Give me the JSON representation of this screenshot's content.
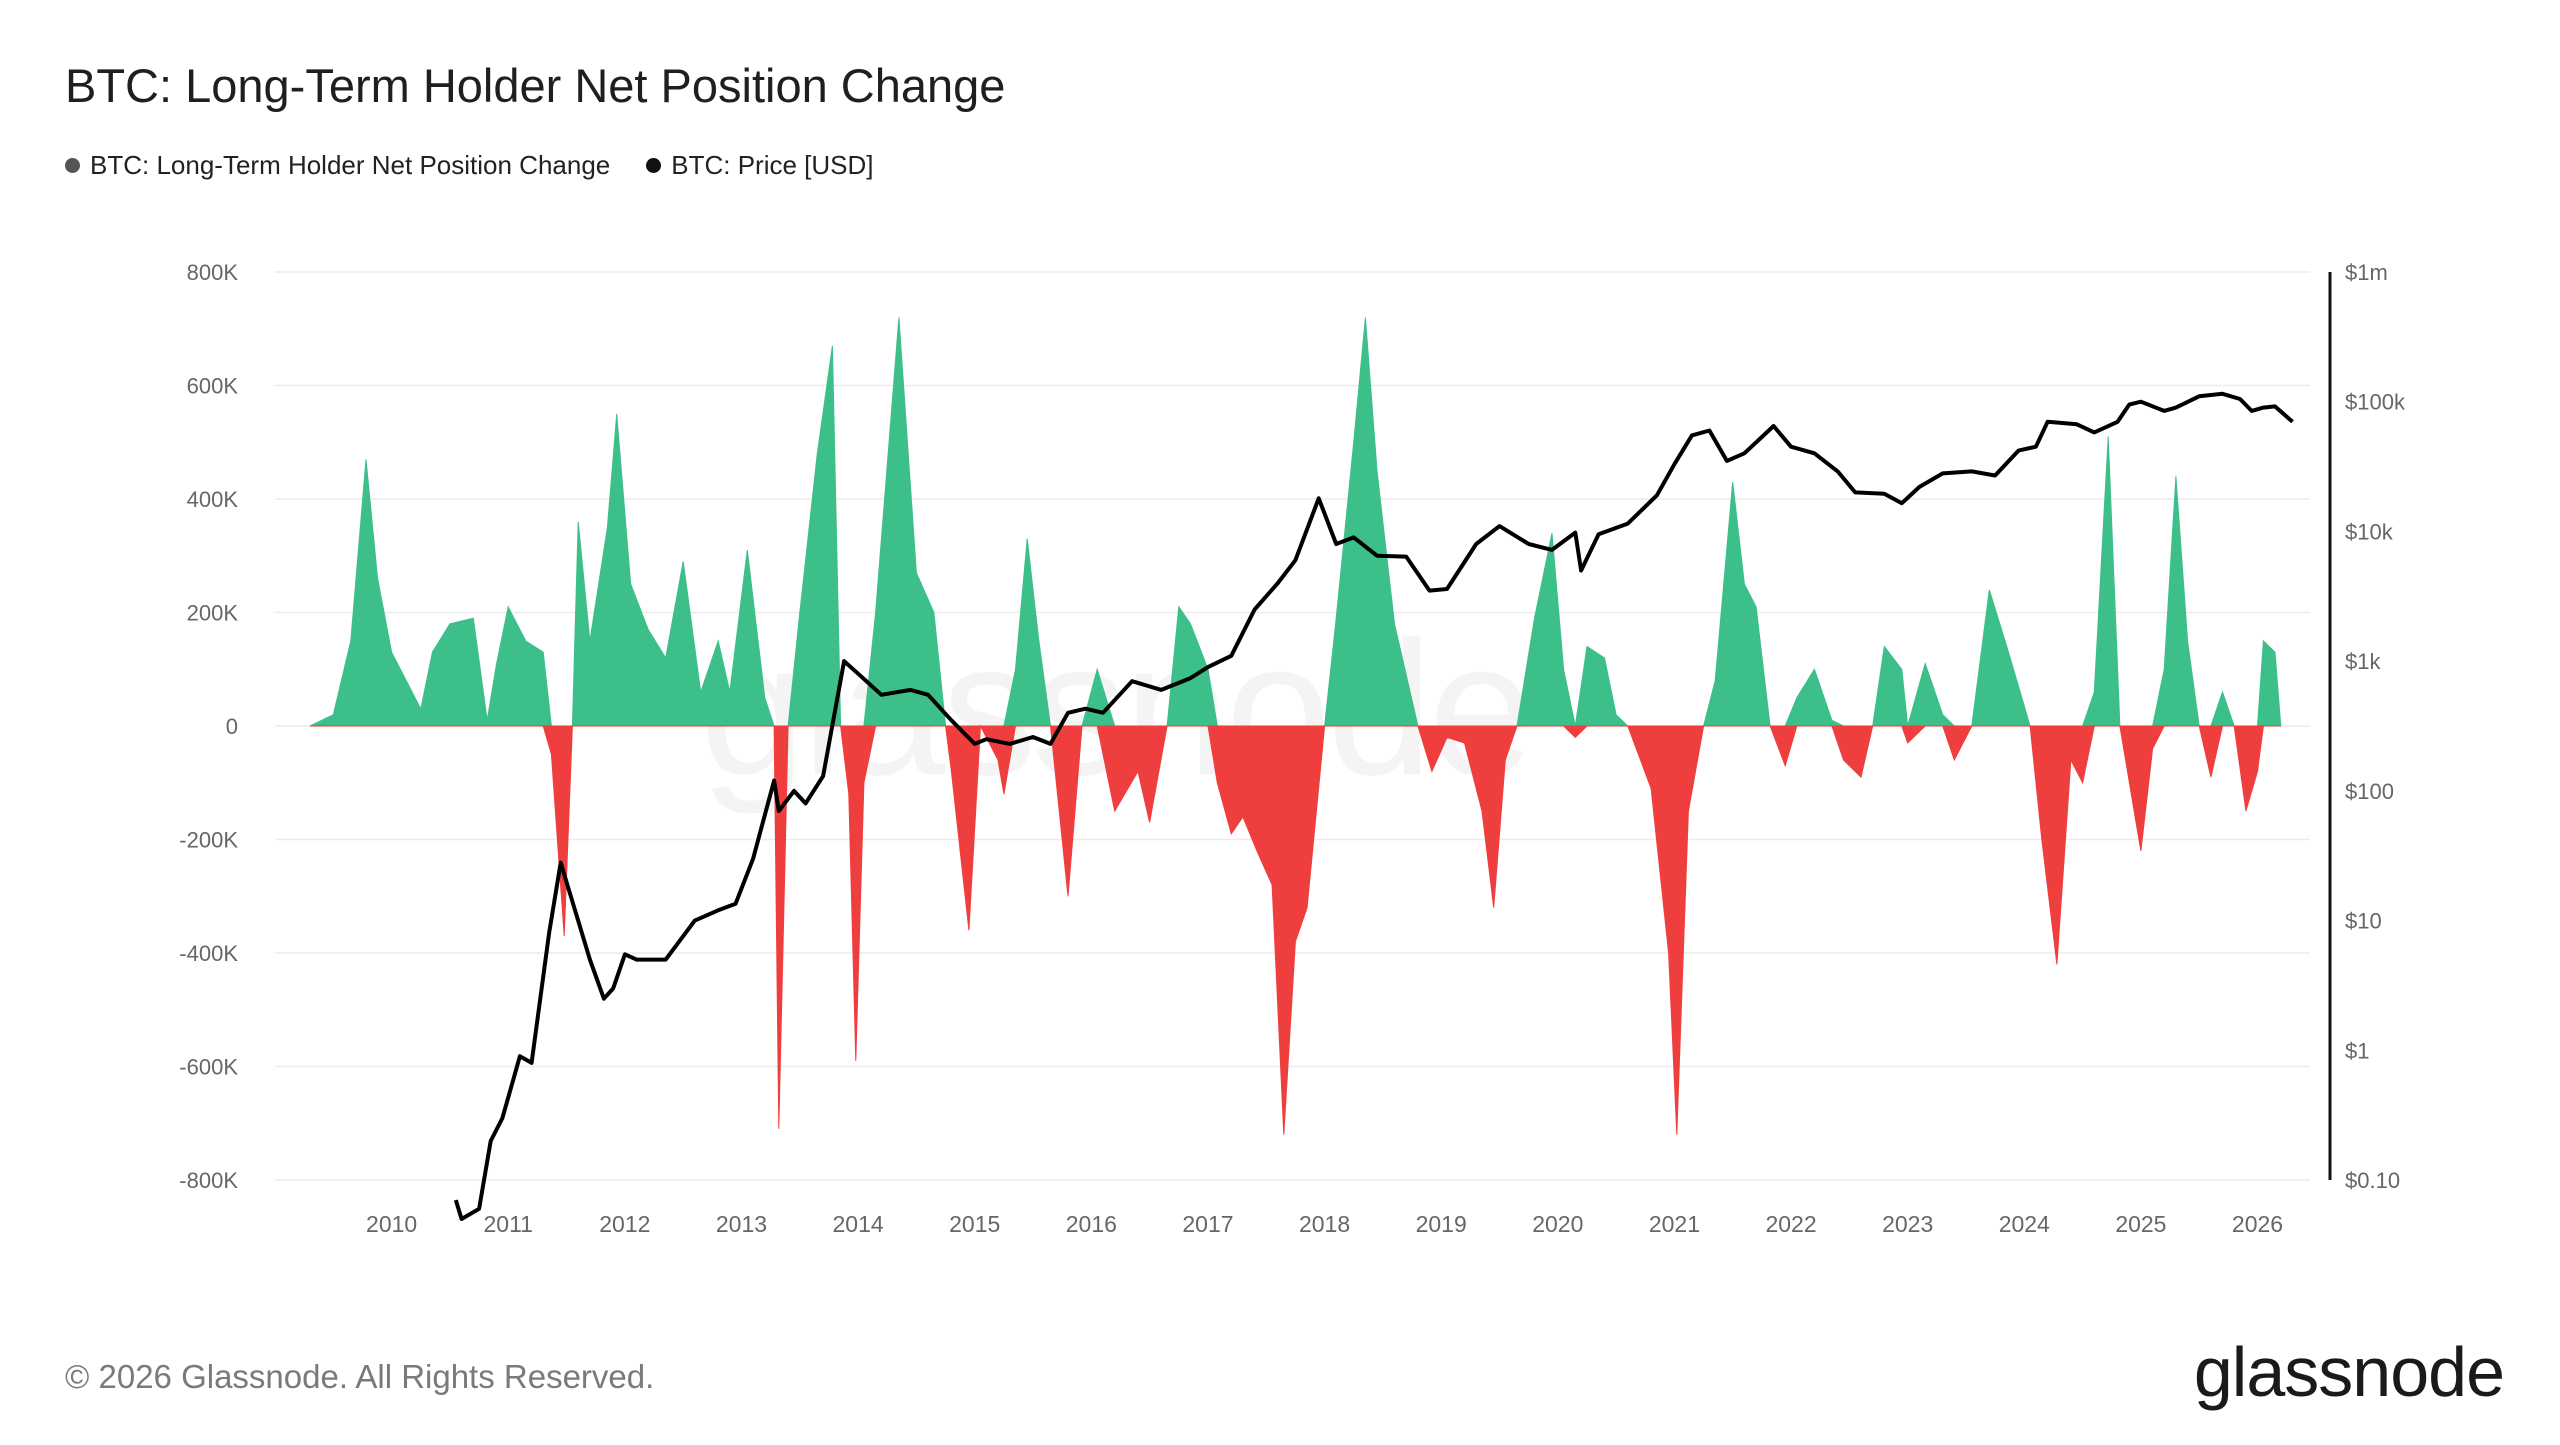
{
  "title": "BTC: Long-Term Holder Net Position Change",
  "legend": [
    {
      "label": "BTC: Long-Term Holder Net Position Change",
      "color": "#555555"
    },
    {
      "label": "BTC: Price [USD]",
      "color": "#111111"
    }
  ],
  "footer": "© 2026 Glassnode. All Rights Reserved.",
  "brand": "glassnode",
  "watermark": "glassnode",
  "colors": {
    "positive": "#3dbf8a",
    "negative": "#ef3e3e",
    "price": "#000000",
    "grid": "#ececec"
  },
  "chart_data": {
    "type": "area",
    "x_ticks": [
      "2010",
      "2011",
      "2012",
      "2013",
      "2014",
      "2015",
      "2016",
      "2017",
      "2018",
      "2019",
      "2020",
      "2021",
      "2022",
      "2023",
      "2024",
      "2025",
      "2026"
    ],
    "y_left": {
      "ticks": [
        "800K",
        "600K",
        "400K",
        "200K",
        "0",
        "-200K",
        "-400K",
        "-600K",
        "-800K"
      ],
      "range": [
        -800000,
        800000
      ]
    },
    "y_right": {
      "ticks": [
        "$1m",
        "$100k",
        "$10k",
        "$1k",
        "$100",
        "$10",
        "$1",
        "$0.10"
      ],
      "scale": "log",
      "range": [
        0.1,
        1000000
      ]
    },
    "series": [
      {
        "name": "BTC: Long-Term Holder Net Position Change",
        "unit": "BTC",
        "points": [
          [
            2009.3,
            0
          ],
          [
            2009.5,
            20000
          ],
          [
            2009.65,
            150000
          ],
          [
            2009.78,
            470000
          ],
          [
            2009.88,
            260000
          ],
          [
            2010.0,
            130000
          ],
          [
            2010.1,
            90000
          ],
          [
            2010.25,
            30000
          ],
          [
            2010.35,
            130000
          ],
          [
            2010.5,
            180000
          ],
          [
            2010.7,
            190000
          ],
          [
            2010.82,
            10000
          ],
          [
            2010.9,
            110000
          ],
          [
            2011.0,
            210000
          ],
          [
            2011.15,
            150000
          ],
          [
            2011.3,
            130000
          ],
          [
            2011.37,
            -50000
          ],
          [
            2011.48,
            -370000
          ],
          [
            2011.55,
            0
          ],
          [
            2011.6,
            360000
          ],
          [
            2011.7,
            150000
          ],
          [
            2011.85,
            350000
          ],
          [
            2011.93,
            550000
          ],
          [
            2012.05,
            250000
          ],
          [
            2012.2,
            170000
          ],
          [
            2012.35,
            120000
          ],
          [
            2012.5,
            290000
          ],
          [
            2012.65,
            60000
          ],
          [
            2012.8,
            150000
          ],
          [
            2012.9,
            60000
          ],
          [
            2013.05,
            310000
          ],
          [
            2013.2,
            50000
          ],
          [
            2013.28,
            0
          ],
          [
            2013.32,
            -710000
          ],
          [
            2013.4,
            0
          ],
          [
            2013.5,
            200000
          ],
          [
            2013.65,
            480000
          ],
          [
            2013.78,
            670000
          ],
          [
            2013.85,
            0
          ],
          [
            2013.92,
            -120000
          ],
          [
            2013.98,
            -590000
          ],
          [
            2014.05,
            -100000
          ],
          [
            2014.15,
            200000
          ],
          [
            2014.35,
            720000
          ],
          [
            2014.5,
            270000
          ],
          [
            2014.65,
            200000
          ],
          [
            2014.75,
            0
          ],
          [
            2014.8,
            -80000
          ],
          [
            2014.95,
            -360000
          ],
          [
            2015.05,
            0
          ],
          [
            2015.2,
            -60000
          ],
          [
            2015.25,
            -120000
          ],
          [
            2015.35,
            100000
          ],
          [
            2015.45,
            330000
          ],
          [
            2015.55,
            150000
          ],
          [
            2015.65,
            0
          ],
          [
            2015.8,
            -300000
          ],
          [
            2015.92,
            0
          ],
          [
            2016.05,
            100000
          ],
          [
            2016.2,
            -150000
          ],
          [
            2016.4,
            -80000
          ],
          [
            2016.5,
            -170000
          ],
          [
            2016.65,
            0
          ],
          [
            2016.75,
            210000
          ],
          [
            2016.85,
            180000
          ],
          [
            2017.0,
            100000
          ],
          [
            2017.08,
            -100000
          ],
          [
            2017.2,
            -190000
          ],
          [
            2017.3,
            -160000
          ],
          [
            2017.42,
            -220000
          ],
          [
            2017.55,
            -280000
          ],
          [
            2017.65,
            -720000
          ],
          [
            2017.75,
            -380000
          ],
          [
            2017.85,
            -320000
          ],
          [
            2018.0,
            0
          ],
          [
            2018.1,
            190000
          ],
          [
            2018.25,
            500000
          ],
          [
            2018.35,
            720000
          ],
          [
            2018.45,
            450000
          ],
          [
            2018.6,
            180000
          ],
          [
            2018.8,
            0
          ],
          [
            2018.92,
            -80000
          ],
          [
            2019.05,
            -20000
          ],
          [
            2019.2,
            -30000
          ],
          [
            2019.35,
            -150000
          ],
          [
            2019.45,
            -320000
          ],
          [
            2019.55,
            -60000
          ],
          [
            2019.65,
            0
          ],
          [
            2019.8,
            190000
          ],
          [
            2019.95,
            340000
          ],
          [
            2020.05,
            100000
          ],
          [
            2020.15,
            -20000
          ],
          [
            2020.25,
            140000
          ],
          [
            2020.4,
            120000
          ],
          [
            2020.5,
            20000
          ],
          [
            2020.6,
            0
          ],
          [
            2020.8,
            -110000
          ],
          [
            2020.95,
            -400000
          ],
          [
            2021.02,
            -720000
          ],
          [
            2021.12,
            -150000
          ],
          [
            2021.25,
            0
          ],
          [
            2021.35,
            80000
          ],
          [
            2021.5,
            430000
          ],
          [
            2021.6,
            250000
          ],
          [
            2021.7,
            210000
          ],
          [
            2021.82,
            0
          ],
          [
            2021.95,
            -70000
          ],
          [
            2022.05,
            50000
          ],
          [
            2022.2,
            100000
          ],
          [
            2022.35,
            10000
          ],
          [
            2022.45,
            -60000
          ],
          [
            2022.6,
            -90000
          ],
          [
            2022.7,
            0
          ],
          [
            2022.8,
            140000
          ],
          [
            2022.95,
            100000
          ],
          [
            2023.0,
            -30000
          ],
          [
            2023.15,
            110000
          ],
          [
            2023.3,
            20000
          ],
          [
            2023.4,
            -60000
          ],
          [
            2023.55,
            0
          ],
          [
            2023.7,
            240000
          ],
          [
            2023.85,
            140000
          ],
          [
            2023.95,
            70000
          ],
          [
            2024.05,
            0
          ],
          [
            2024.15,
            -200000
          ],
          [
            2024.28,
            -420000
          ],
          [
            2024.4,
            -60000
          ],
          [
            2024.5,
            -100000
          ],
          [
            2024.6,
            60000
          ],
          [
            2024.72,
            510000
          ],
          [
            2024.82,
            0
          ],
          [
            2024.95,
            -160000
          ],
          [
            2025.0,
            -220000
          ],
          [
            2025.1,
            -40000
          ],
          [
            2025.2,
            100000
          ],
          [
            2025.3,
            440000
          ],
          [
            2025.4,
            150000
          ],
          [
            2025.5,
            0
          ],
          [
            2025.6,
            -90000
          ],
          [
            2025.7,
            60000
          ],
          [
            2025.8,
            0
          ],
          [
            2025.9,
            -150000
          ],
          [
            2026.0,
            -80000
          ],
          [
            2026.05,
            150000
          ],
          [
            2026.15,
            130000
          ],
          [
            2026.2,
            0
          ]
        ]
      },
      {
        "name": "BTC: Price [USD]",
        "unit": "USD",
        "points": [
          [
            2010.55,
            0.07
          ],
          [
            2010.6,
            0.05
          ],
          [
            2010.75,
            0.06
          ],
          [
            2010.85,
            0.2
          ],
          [
            2010.95,
            0.3
          ],
          [
            2011.1,
            0.9
          ],
          [
            2011.2,
            0.8
          ],
          [
            2011.35,
            8
          ],
          [
            2011.45,
            28
          ],
          [
            2011.55,
            14
          ],
          [
            2011.7,
            5
          ],
          [
            2011.82,
            2.5
          ],
          [
            2011.9,
            3
          ],
          [
            2012.0,
            5.5
          ],
          [
            2012.1,
            5
          ],
          [
            2012.35,
            5
          ],
          [
            2012.6,
            10
          ],
          [
            2012.8,
            12
          ],
          [
            2012.95,
            13.5
          ],
          [
            2013.1,
            30
          ],
          [
            2013.28,
            120
          ],
          [
            2013.32,
            70
          ],
          [
            2013.45,
            100
          ],
          [
            2013.55,
            80
          ],
          [
            2013.7,
            130
          ],
          [
            2013.88,
            1000
          ],
          [
            2014.0,
            800
          ],
          [
            2014.2,
            550
          ],
          [
            2014.45,
            600
          ],
          [
            2014.6,
            550
          ],
          [
            2014.8,
            350
          ],
          [
            2015.0,
            230
          ],
          [
            2015.1,
            250
          ],
          [
            2015.3,
            230
          ],
          [
            2015.5,
            260
          ],
          [
            2015.65,
            230
          ],
          [
            2015.8,
            400
          ],
          [
            2015.95,
            430
          ],
          [
            2016.1,
            400
          ],
          [
            2016.35,
            700
          ],
          [
            2016.6,
            600
          ],
          [
            2016.85,
            740
          ],
          [
            2017.0,
            900
          ],
          [
            2017.2,
            1100
          ],
          [
            2017.4,
            2500
          ],
          [
            2017.6,
            4000
          ],
          [
            2017.75,
            6000
          ],
          [
            2017.95,
            18000
          ],
          [
            2018.1,
            8000
          ],
          [
            2018.25,
            9000
          ],
          [
            2018.45,
            6500
          ],
          [
            2018.7,
            6400
          ],
          [
            2018.9,
            3500
          ],
          [
            2019.05,
            3600
          ],
          [
            2019.3,
            8000
          ],
          [
            2019.5,
            11000
          ],
          [
            2019.75,
            8000
          ],
          [
            2019.95,
            7200
          ],
          [
            2020.15,
            9800
          ],
          [
            2020.2,
            5000
          ],
          [
            2020.35,
            9500
          ],
          [
            2020.6,
            11500
          ],
          [
            2020.85,
            19000
          ],
          [
            2021.0,
            33000
          ],
          [
            2021.15,
            55000
          ],
          [
            2021.3,
            60000
          ],
          [
            2021.45,
            35000
          ],
          [
            2021.6,
            40000
          ],
          [
            2021.85,
            65000
          ],
          [
            2022.0,
            45000
          ],
          [
            2022.2,
            40000
          ],
          [
            2022.4,
            29000
          ],
          [
            2022.55,
            20000
          ],
          [
            2022.8,
            19500
          ],
          [
            2022.95,
            16500
          ],
          [
            2023.1,
            22000
          ],
          [
            2023.3,
            28000
          ],
          [
            2023.55,
            29000
          ],
          [
            2023.75,
            27000
          ],
          [
            2023.95,
            42000
          ],
          [
            2024.1,
            45000
          ],
          [
            2024.2,
            70000
          ],
          [
            2024.45,
            67000
          ],
          [
            2024.6,
            58000
          ],
          [
            2024.8,
            70000
          ],
          [
            2024.9,
            95000
          ],
          [
            2025.0,
            100000
          ],
          [
            2025.2,
            85000
          ],
          [
            2025.3,
            90000
          ],
          [
            2025.5,
            110000
          ],
          [
            2025.7,
            115000
          ],
          [
            2025.85,
            105000
          ],
          [
            2025.95,
            85000
          ],
          [
            2026.05,
            90000
          ],
          [
            2026.15,
            92000
          ],
          [
            2026.3,
            70000
          ]
        ]
      }
    ],
    "grid": true,
    "legend_position": "top-left"
  }
}
